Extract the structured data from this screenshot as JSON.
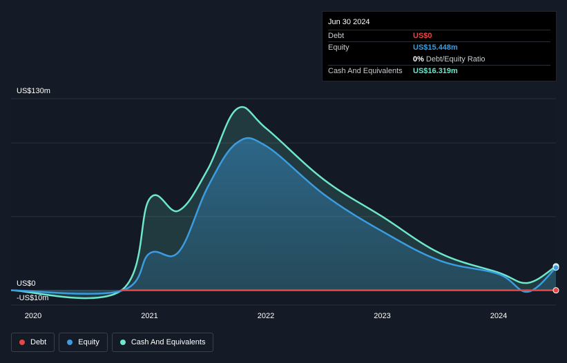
{
  "tooltip": {
    "date": "Jun 30 2024",
    "rows": [
      {
        "label": "Debt",
        "value": "US$0",
        "color": "#e84545"
      },
      {
        "label": "Equity",
        "value": "US$15.448m",
        "color": "#3b9de0"
      },
      {
        "label": "",
        "value": "0%",
        "extra": "Debt/Equity Ratio",
        "color": "#ffffff"
      },
      {
        "label": "Cash And Equivalents",
        "value": "US$16.319m",
        "color": "#6ee7cc"
      }
    ]
  },
  "legend": [
    {
      "label": "Debt",
      "color": "#e84545"
    },
    {
      "label": "Equity",
      "color": "#3b9de0"
    },
    {
      "label": "Cash And Equivalents",
      "color": "#6ee7cc"
    }
  ],
  "chart_data": {
    "type": "area",
    "y_top_label": "US$130m",
    "y_zero_label": "US$0",
    "y_bottom_label": "-US$10m",
    "ylim": [
      -10,
      130
    ],
    "xlim": [
      2020.0,
      2024.5
    ],
    "x_ticks": [
      "2020",
      "2021",
      "2022",
      "2023",
      "2024"
    ],
    "x_tick_values": [
      2020,
      2021,
      2022,
      2023,
      2024
    ],
    "grid": true,
    "legend_position": "bottom-left",
    "series": [
      {
        "name": "Cash And Equivalents",
        "color": "#6ee7cc",
        "x": [
          2019.8,
          2020.75,
          2021.0,
          2021.25,
          2021.5,
          2021.75,
          2022.0,
          2022.5,
          2023.0,
          2023.5,
          2024.0,
          2024.25,
          2024.5
        ],
        "y": [
          0,
          -0.5,
          62,
          54,
          82,
          123,
          110,
          75,
          50,
          25,
          12,
          5,
          16.3
        ]
      },
      {
        "name": "Equity",
        "color": "#3b9de0",
        "x": [
          2019.8,
          2020.75,
          2021.0,
          2021.25,
          2021.5,
          2021.75,
          2022.0,
          2022.5,
          2023.0,
          2023.5,
          2024.0,
          2024.25,
          2024.5
        ],
        "y": [
          0,
          -0.5,
          25,
          26,
          70,
          100,
          98,
          65,
          40,
          20,
          11,
          -1,
          15.4
        ]
      },
      {
        "name": "Debt",
        "color": "#e84545",
        "x": [
          2020.75,
          2024.5
        ],
        "y": [
          0,
          0
        ]
      }
    ]
  }
}
